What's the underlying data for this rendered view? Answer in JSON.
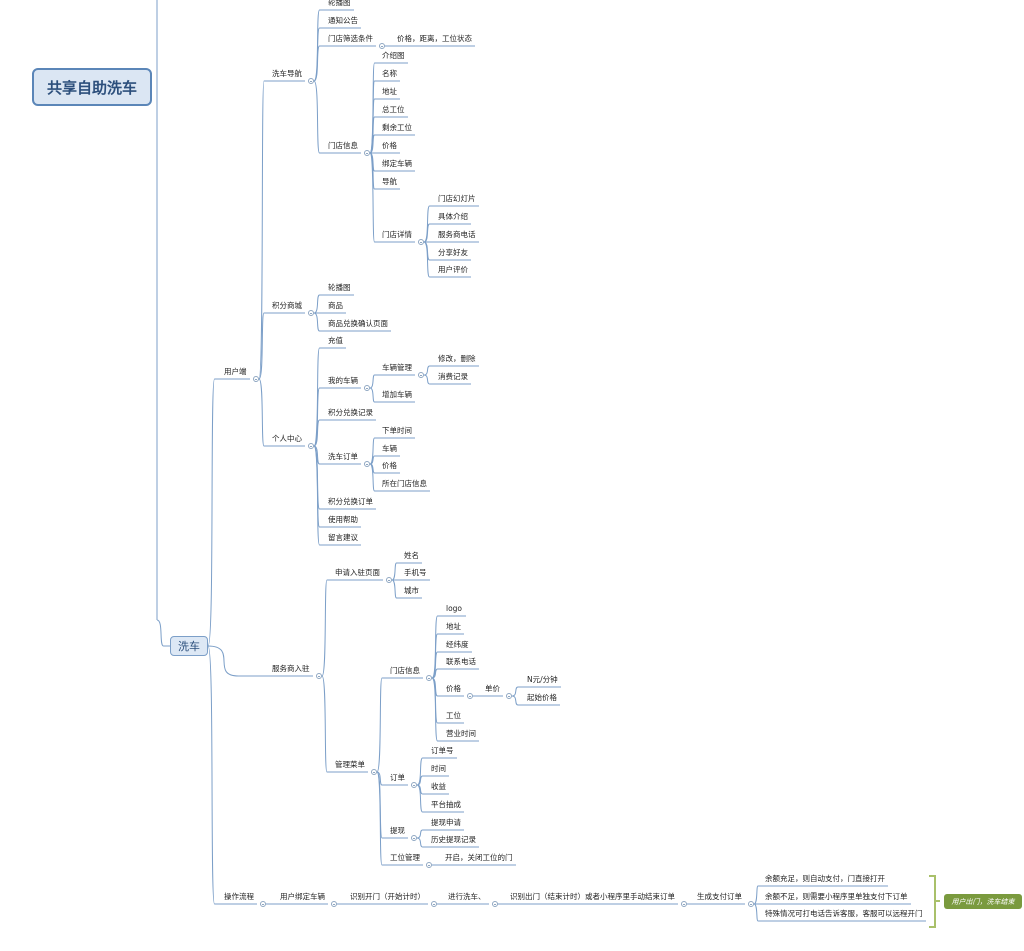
{
  "root": "共享自助洗车",
  "main_topic": "洗车",
  "summary": "用户出门，洗车结束",
  "colors": {
    "line": "#7c9fc8",
    "root_fill": "#dbe6f3",
    "root_border": "#5b86b8",
    "summary": "#7a9a3e"
  },
  "icons": {
    "collapse": "collapse-toggle-icon",
    "summary": "summary-brace-icon"
  },
  "tree": {
    "user_end": {
      "label": "用户端",
      "nav": {
        "label": "洗车导航",
        "banner": "轮播图",
        "notice": "通知公告",
        "filter": "门店筛选条件",
        "filter_detail": "价格，距离，工位状态",
        "info": "门店信息",
        "info_items": [
          "介绍图",
          "名称",
          "地址",
          "总工位",
          "剩余工位",
          "价格",
          "绑定车辆",
          "导航"
        ],
        "detail": "门店详情",
        "detail_items": [
          "门店幻灯片",
          "具体介绍",
          "服务商电话",
          "分享好友",
          "用户评价"
        ]
      },
      "mall": {
        "label": "积分商城",
        "items": [
          "轮播图",
          "商品",
          "商品兑换确认页面"
        ]
      },
      "center": {
        "label": "个人中心",
        "recharge": "充值",
        "my_car": "我的车辆",
        "car_mgmt": "车辆管理",
        "car_edit": "修改，删除",
        "car_record": "消费记录",
        "add_car": "增加车辆",
        "points_record": "积分兑换记录",
        "wash_order": "洗车订单",
        "wash_order_items": [
          "下单时间",
          "车辆",
          "价格",
          "所在门店信息"
        ],
        "points_order": "积分兑换订单",
        "help": "使用帮助",
        "feedback": "留言建议"
      }
    },
    "provider": {
      "label": "服务商入驻",
      "apply": "申请入驻页面",
      "apply_items": [
        "姓名",
        "手机号",
        "城市"
      ],
      "manage": "管理菜单",
      "store": "门店信息",
      "store_items_top": [
        "logo",
        "地址",
        "经纬度",
        "联系电话"
      ],
      "price": "价格",
      "unit": "单价",
      "unit_items": [
        "N元/分钟",
        "起始价格"
      ],
      "store_items_bottom": [
        "工位",
        "营业时间"
      ],
      "order": "订单",
      "order_items": [
        "订单号",
        "时间",
        "收益",
        "平台抽成"
      ],
      "withdraw": "提现",
      "withdraw_items": [
        "提现申请",
        "历史提现记录"
      ],
      "bay": "工位管理",
      "bay_detail": "开启，关闭工位的门"
    },
    "flow": {
      "label": "操作流程",
      "steps": [
        "用户绑定车辆",
        "识别开门（开始计时）",
        "进行洗车、",
        "识别出门（结束计时）或者小程序里手动结束订单",
        "生成支付订单"
      ],
      "outcomes": [
        "余额充足，则自动支付，门直接打开",
        "余额不足，则需要小程序里单独支付下订单",
        "特殊情况可打电话告诉客服，客服可以远程开门"
      ]
    }
  }
}
